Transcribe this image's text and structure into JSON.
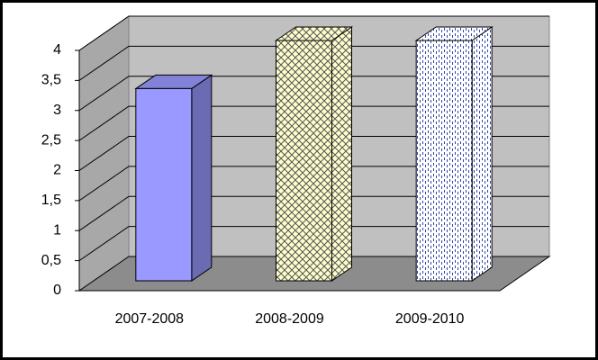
{
  "chart_data": {
    "type": "bar3d",
    "categories": [
      "2007-2008",
      "2008-2009",
      "2009-2010"
    ],
    "values": [
      3.2,
      4,
      4
    ],
    "colors": [
      "#9999ff",
      "#ffffcc",
      "#ffffff"
    ],
    "ylim": [
      0,
      4
    ],
    "yticks": [
      0,
      {
        "value": 0.5,
        "label": "0,5"
      },
      1,
      {
        "value": 1.5,
        "label": "1,5"
      },
      2,
      {
        "value": 2.5,
        "label": "2,5"
      },
      3,
      {
        "value": 3.5,
        "label": "3,5"
      },
      4
    ],
    "grid": true
  }
}
